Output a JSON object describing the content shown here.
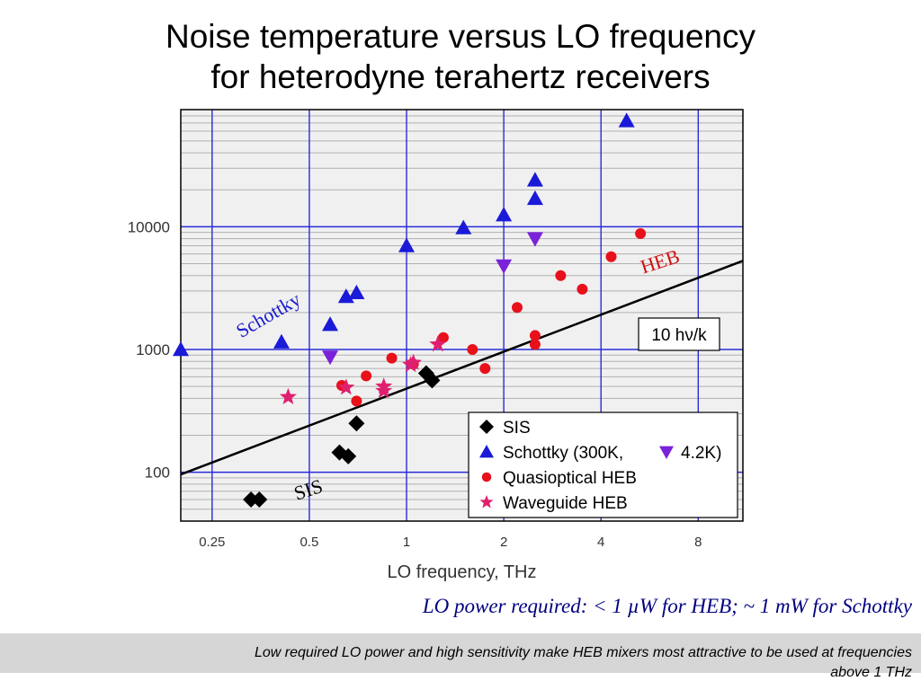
{
  "slide": {
    "title_line1": "Noise temperature versus LO frequency",
    "title_line2": "for heterodyne terahertz receivers",
    "note": "LO power required:  < 1 µW for HEB; ~ 1 mW for Schottky",
    "footer_line1": "Low required LO power and high sensitivity make HEB mixers most attractive to be used at frequencies",
    "footer_line2": "above 1 THz"
  },
  "chart_data": {
    "type": "scatter",
    "xlabel": "LO frequency, THz",
    "ylabel": "",
    "xscale": "log",
    "yscale": "log",
    "xlim": [
      0.2,
      11
    ],
    "ylim": [
      40,
      90000
    ],
    "xticks": [
      0.25,
      0.5,
      1,
      2,
      4,
      8
    ],
    "xtick_labels": [
      "0.25",
      "0.5",
      "1",
      "2",
      "4",
      "8"
    ],
    "yticks": [
      100,
      1000,
      10000
    ],
    "ytick_labels": [
      "100",
      "1000",
      "10000"
    ],
    "grid": true,
    "legend_position": "bottom-right",
    "colors": {
      "plot_bg": "#f0f0f0",
      "major_grid": "#2a2adb",
      "minor_grid": "#b0b0b0",
      "sis": "#000000",
      "schottky": "#1a1ad8",
      "heb_quasi": "#e8101a",
      "heb_waveguide": "#e0206e",
      "schottky_label": "#1a1acc",
      "heb_label": "#d01010"
    },
    "series": [
      {
        "name": "SIS",
        "marker": "diamond",
        "points": [
          [
            0.33,
            60
          ],
          [
            0.35,
            60
          ],
          [
            0.62,
            145
          ],
          [
            0.66,
            135
          ],
          [
            0.7,
            250
          ],
          [
            1.15,
            640
          ],
          [
            1.2,
            560
          ]
        ]
      },
      {
        "name": "Schottky (300K,",
        "marker": "triangle-up",
        "points": [
          [
            0.2,
            1000
          ],
          [
            0.41,
            1150
          ],
          [
            0.58,
            1600
          ],
          [
            0.65,
            2700
          ],
          [
            0.7,
            2900
          ],
          [
            1.0,
            7000
          ],
          [
            1.5,
            9800
          ],
          [
            2.0,
            12500
          ],
          [
            2.5,
            17000
          ],
          [
            2.5,
            24000
          ],
          [
            4.8,
            73000
          ]
        ]
      },
      {
        "name": "4.2K)",
        "marker": "triangle-down",
        "points": [
          [
            0.58,
            870
          ],
          [
            2.0,
            4800
          ],
          [
            2.5,
            8000
          ]
        ]
      },
      {
        "name": "Quasioptical HEB",
        "marker": "circle",
        "points": [
          [
            0.63,
            510
          ],
          [
            0.7,
            380
          ],
          [
            0.75,
            610
          ],
          [
            0.9,
            850
          ],
          [
            1.05,
            760
          ],
          [
            1.3,
            1250
          ],
          [
            1.6,
            1000
          ],
          [
            1.75,
            700
          ],
          [
            2.2,
            2200
          ],
          [
            2.5,
            1300
          ],
          [
            2.5,
            1100
          ],
          [
            3.0,
            4000
          ],
          [
            3.5,
            3100
          ],
          [
            4.3,
            5700
          ],
          [
            5.3,
            8800
          ]
        ]
      },
      {
        "name": "Waveguide HEB",
        "marker": "star",
        "points": [
          [
            0.43,
            410
          ],
          [
            0.65,
            490
          ],
          [
            0.85,
            500
          ],
          [
            0.85,
            460
          ],
          [
            1.03,
            750
          ],
          [
            1.05,
            780
          ],
          [
            1.25,
            1100
          ]
        ]
      }
    ],
    "reference_line": {
      "label": "10 hν/k",
      "points": [
        [
          0.2,
          96
        ],
        [
          11,
          5280
        ]
      ]
    },
    "annotations": [
      {
        "text": "Schottky",
        "color_key": "schottky_label"
      },
      {
        "text": "HEB",
        "color_key": "heb_label"
      },
      {
        "text": "SIS",
        "color_key": "sis"
      }
    ]
  }
}
